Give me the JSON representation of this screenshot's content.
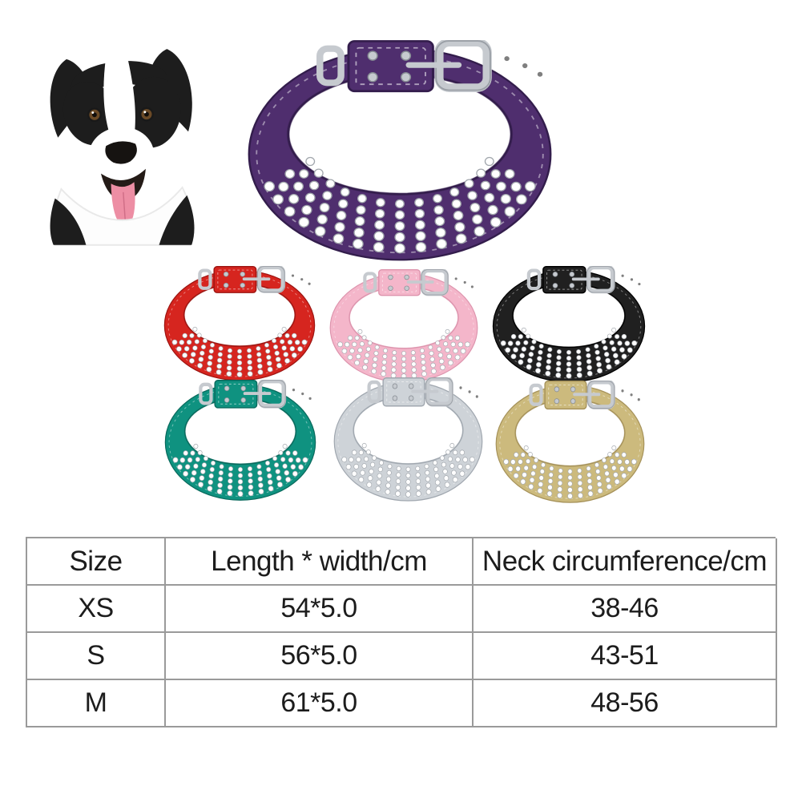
{
  "page": {
    "background": "#ffffff",
    "table_line_color": "#9a9a9a",
    "text_color": "#1c1c1c"
  },
  "dog": {
    "label": "black-and-white border collie with tongue out",
    "colors": {
      "fur": "#1d1d1d",
      "white": "#ffffff",
      "tongue": "#ed8ea4",
      "tongue_edge": "#d06e87",
      "mouth": "#241b17",
      "nose": "#161311",
      "eye": "#6b4a26",
      "chest_edge": "#e9e9e9"
    }
  },
  "collars_common": {
    "stone": "#ffffff",
    "stone_edge": "#a2a7ad",
    "metal": "#c6cacf",
    "metal_edge": "#878d94",
    "stitch": "#ffffff"
  },
  "collars": {
    "purple": {
      "label": "purple rhinestone collar",
      "band": "#4f2e6e",
      "dark": "#331d4c"
    },
    "red": {
      "label": "red rhinestone collar",
      "band": "#d6251f",
      "dark": "#9c1512"
    },
    "pink": {
      "label": "pink rhinestone collar",
      "band": "#f4b6ca",
      "dark": "#dd94ad"
    },
    "black": {
      "label": "black rhinestone collar",
      "band": "#202020",
      "dark": "#000000"
    },
    "teal": {
      "label": "teal rhinestone collar",
      "band": "#0f9280",
      "dark": "#0a6a5d"
    },
    "silver": {
      "label": "silver rhinestone collar",
      "band": "#ced3d8",
      "dark": "#a0a7af"
    },
    "gold": {
      "label": "gold rhinestone collar",
      "band": "#ccba7d",
      "dark": "#a6925a"
    }
  },
  "table": {
    "headers": [
      "Size",
      "Length * width/cm",
      "Neck circumference/cm"
    ],
    "rows": [
      [
        "XS",
        "54*5.0",
        "38-46"
      ],
      [
        "S",
        "56*5.0",
        "43-51"
      ],
      [
        "M",
        "61*5.0",
        "48-56"
      ]
    ]
  }
}
